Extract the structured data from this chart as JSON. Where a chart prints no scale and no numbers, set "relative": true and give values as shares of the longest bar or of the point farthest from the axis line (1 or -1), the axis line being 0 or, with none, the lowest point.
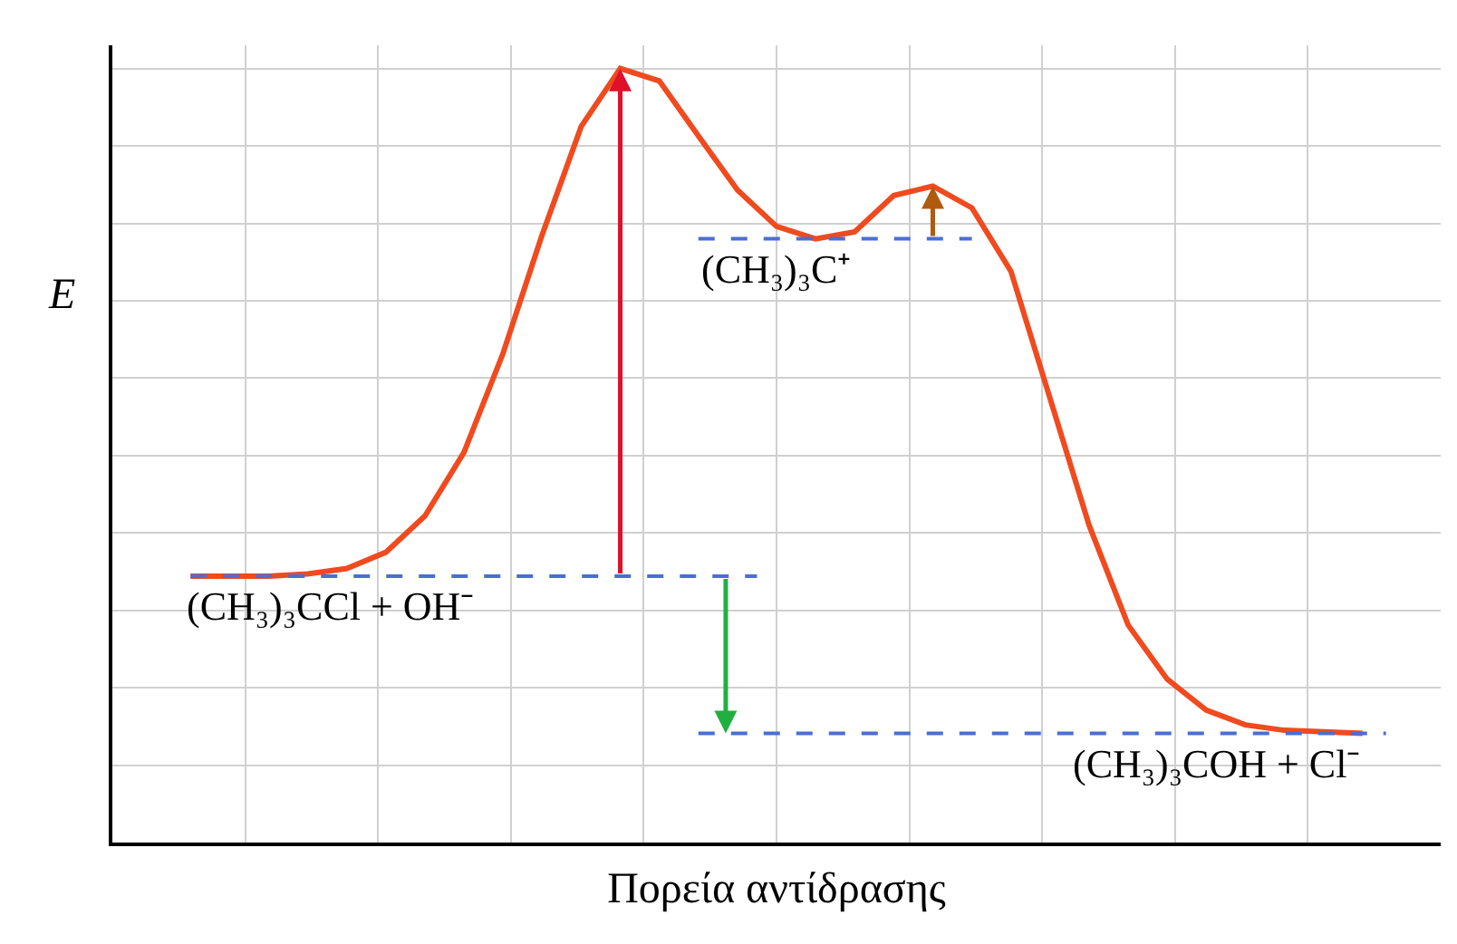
{
  "chart_data": {
    "type": "line",
    "relative": true,
    "xlabel": "Πορεία αντίδρασης",
    "ylabel": "E",
    "grid": true,
    "marker": "none",
    "line_style": "solid",
    "categories": [
      null,
      null,
      null,
      null,
      null,
      null,
      null,
      null,
      null,
      null,
      null,
      null,
      null,
      null,
      null,
      null,
      null,
      null,
      null,
      null,
      null,
      null,
      null,
      null,
      null,
      null,
      null,
      null,
      null,
      null,
      null,
      null,
      null,
      null,
      null
    ],
    "series": [
      {
        "color": "#f04a1e",
        "values": [
          null,
          null,
          0.344,
          0.344,
          0.344,
          0.347,
          0.354,
          0.375,
          0.422,
          0.504,
          0.632,
          0.785,
          0.925,
          1.0,
          0.984,
          0.913,
          0.843,
          0.796,
          0.78,
          0.789,
          0.836,
          0.848,
          0.82,
          0.738,
          0.574,
          0.41,
          0.281,
          0.211,
          0.171,
          0.152,
          0.145,
          0.143,
          0.141,
          null,
          null
        ]
      }
    ],
    "ref_lines": [
      {
        "axis": "y",
        "value": 0.344,
        "label": "(CH₃)₃CCl + OH⁻",
        "color": "#4a6fd0",
        "line_style": "dashed"
      },
      {
        "axis": "y",
        "value": 0.78,
        "label": "(CH₃)₃C⁺",
        "color": "#4a6fd0",
        "line_style": "dashed"
      },
      {
        "axis": "y",
        "value": 0.141,
        "label": "(CH₃)₃COH + Cl⁻",
        "color": "#4a6fd0",
        "line_style": "dashed"
      }
    ]
  }
}
